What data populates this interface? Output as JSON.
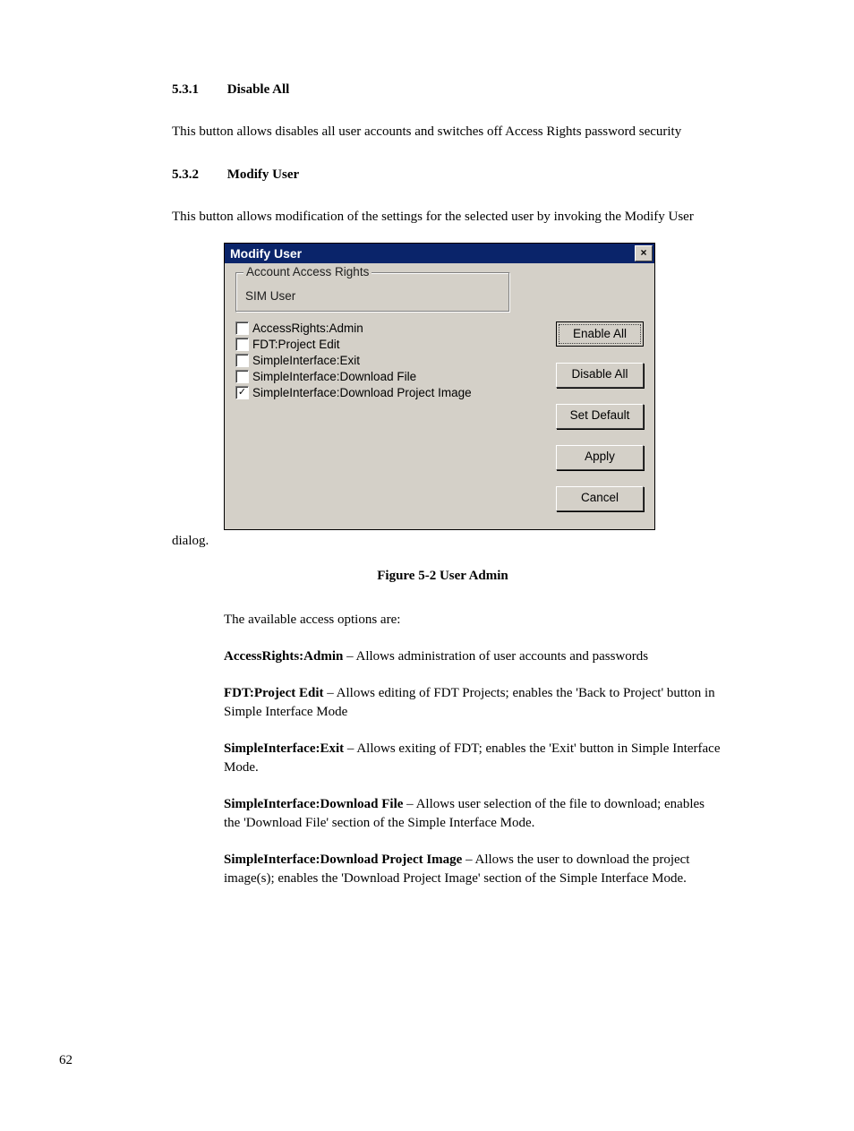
{
  "sections": {
    "s1": {
      "num": "5.3.1",
      "title": "Disable All",
      "text": "This button allows disables all user accounts and switches off Access Rights password security"
    },
    "s2": {
      "num": "5.3.2",
      "title": "Modify User",
      "text": "This button allows modification of the settings for the selected user by invoking the Modify User"
    }
  },
  "dialog": {
    "title": "Modify User",
    "groupbox_label": "Account Access Rights",
    "groupbox_value": "SIM User",
    "items": [
      {
        "label": "AccessRights:Admin",
        "checked": false
      },
      {
        "label": "FDT:Project Edit",
        "checked": false
      },
      {
        "label": "SimpleInterface:Exit",
        "checked": false
      },
      {
        "label": "SimpleInterface:Download File",
        "checked": false
      },
      {
        "label": "SimpleInterface:Download Project Image",
        "checked": true
      }
    ],
    "buttons": {
      "enable_all": "Enable All",
      "disable_all": "Disable All",
      "set_default": "Set Default",
      "apply": "Apply",
      "cancel": "Cancel"
    },
    "colors": {
      "face": "#d4d0c8",
      "titlebar": "#0a246a",
      "title_text": "#ffffff"
    }
  },
  "after_dialog_word": "dialog.",
  "figure_caption": "Figure 5-2 User Admin",
  "options_intro": "The available access options are:",
  "options": [
    {
      "bold": "AccessRights:Admin",
      "rest": " – Allows administration of user accounts and passwords"
    },
    {
      "bold": "FDT:Project Edit",
      "rest": " – Allows editing of FDT Projects; enables the 'Back to Project' button in Simple Interface Mode"
    },
    {
      "bold": "SimpleInterface:Exit",
      "rest": " – Allows exiting of FDT; enables the 'Exit' button in Simple Interface Mode."
    },
    {
      "bold": "SimpleInterface:Download File",
      "rest": " – Allows user selection of the file to download; enables the 'Download File' section of the Simple Interface Mode."
    },
    {
      "bold": "SimpleInterface:Download Project Image",
      "rest": " – Allows the user to download the project image(s); enables the 'Download Project Image' section of the Simple Interface Mode."
    }
  ],
  "page_number": "62"
}
